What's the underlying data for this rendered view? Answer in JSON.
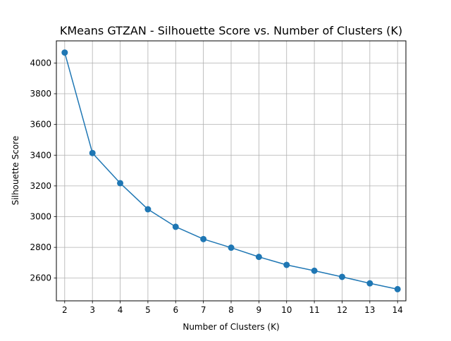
{
  "chart_data": {
    "type": "line",
    "title": "KMeans GTZAN - Silhouette Score vs. Number of Clusters (K)",
    "xlabel": "Number of Clusters (K)",
    "ylabel": "Silhouette Score",
    "x": [
      2,
      3,
      4,
      5,
      6,
      7,
      8,
      9,
      10,
      11,
      12,
      13,
      14
    ],
    "series": [
      {
        "values": [
          4068,
          3414,
          3218,
          3048,
          2934,
          2854,
          2798,
          2738,
          2686,
          2648,
          2608,
          2566,
          2528
        ]
      }
    ],
    "xlim": [
      1.7,
      14.3
    ],
    "ylim": [
      2452,
      4144
    ],
    "xticks": [
      "2",
      "3",
      "4",
      "5",
      "6",
      "7",
      "8",
      "9",
      "10",
      "11",
      "12",
      "13",
      "14"
    ],
    "yticks": [
      "2600",
      "2800",
      "3000",
      "3200",
      "3400",
      "3600",
      "3800",
      "4000"
    ],
    "grid": true,
    "line_color": "#1f77b4",
    "marker": "circle"
  }
}
